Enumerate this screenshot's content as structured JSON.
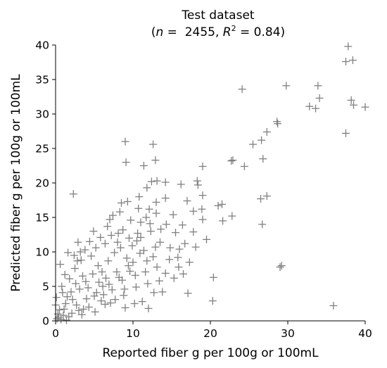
{
  "chart_data": {
    "type": "scatter",
    "title": "Test dataset",
    "subtitle": {
      "prefix": "(",
      "n_symbol": "n",
      "n_text": " =  2455, ",
      "r_symbol": "R",
      "r_sup": "2",
      "r_text": " = 0.84)"
    },
    "xlabel": "Reported fiber g per 100g or 100mL",
    "ylabel": "Predicted fiber g per 100g or 100mL",
    "xlim": [
      0,
      40
    ],
    "ylim": [
      0,
      40
    ],
    "xticks": [
      0,
      10,
      20,
      30,
      40
    ],
    "yticks": [
      0,
      5,
      10,
      15,
      20,
      25,
      30,
      35,
      40
    ],
    "marker": "+",
    "marker_color": "#808080",
    "grid": false,
    "n_points": 2455,
    "r_squared": 0.84,
    "series": [
      {
        "values": [
          [
            37.8,
            39.8
          ],
          [
            37.5,
            37.6
          ],
          [
            38.4,
            37.8
          ],
          [
            33.9,
            34.1
          ],
          [
            34.1,
            32.3
          ],
          [
            32.8,
            31.1
          ],
          [
            33.6,
            30.8
          ],
          [
            38.2,
            32.0
          ],
          [
            38.5,
            31.3
          ],
          [
            40.0,
            31.0
          ],
          [
            37.5,
            27.2
          ],
          [
            29.8,
            34.1
          ],
          [
            24.1,
            33.6
          ],
          [
            28.6,
            28.9
          ],
          [
            28.7,
            28.6
          ],
          [
            27.3,
            27.4
          ],
          [
            26.6,
            26.2
          ],
          [
            25.5,
            25.6
          ],
          [
            26.8,
            23.5
          ],
          [
            24.4,
            22.4
          ],
          [
            22.7,
            23.2
          ],
          [
            22.9,
            23.3
          ],
          [
            21.0,
            16.7
          ],
          [
            21.5,
            16.9
          ],
          [
            22.8,
            15.2
          ],
          [
            26.5,
            17.7
          ],
          [
            27.3,
            18.1
          ],
          [
            26.7,
            14.0
          ],
          [
            29.0,
            7.8
          ],
          [
            29.2,
            8.0
          ],
          [
            35.9,
            2.2
          ],
          [
            20.3,
            2.9
          ],
          [
            20.4,
            6.3
          ],
          [
            17.1,
            4.0
          ],
          [
            9.0,
            26.0
          ],
          [
            9.1,
            23.0
          ],
          [
            11.4,
            22.5
          ],
          [
            12.6,
            25.6
          ],
          [
            12.9,
            23.3
          ],
          [
            2.3,
            18.4
          ],
          [
            8.5,
            17.1
          ],
          [
            9.3,
            17.3
          ],
          [
            11.8,
            19.3
          ],
          [
            12.4,
            20.2
          ],
          [
            13.1,
            20.3
          ],
          [
            14.2,
            20.1
          ],
          [
            16.2,
            19.8
          ],
          [
            19.0,
            22.4
          ],
          [
            18.3,
            20.3
          ],
          [
            18.4,
            19.7
          ],
          [
            19.0,
            18.2
          ],
          [
            15.2,
            15.4
          ],
          [
            14.3,
            14.0
          ],
          [
            16.4,
            13.9
          ],
          [
            13.0,
            17.2
          ],
          [
            10.8,
            18.0
          ],
          [
            11.7,
            15.0
          ],
          [
            12.1,
            16.2
          ],
          [
            14.2,
            17.8
          ],
          [
            7.4,
            15.3
          ],
          [
            8.3,
            15.8
          ],
          [
            11.0,
            14.3
          ],
          [
            13.5,
            11.4
          ],
          [
            15.5,
            12.8
          ],
          [
            17.8,
            12.9
          ],
          [
            19.0,
            14.7
          ],
          [
            21.6,
            14.5
          ],
          [
            17.3,
            8.5
          ],
          [
            16.0,
            10.4
          ],
          [
            15.3,
            6.2
          ],
          [
            14.2,
            6.9
          ],
          [
            13.8,
            4.2
          ],
          [
            12.7,
            4.1
          ],
          [
            11.9,
            5.4
          ],
          [
            11.2,
            2.8
          ],
          [
            12.0,
            1.8
          ],
          [
            10.2,
            2.5
          ],
          [
            9.0,
            1.9
          ],
          [
            8.8,
            3.7
          ],
          [
            6.4,
            2.4
          ],
          [
            4.3,
            2.0
          ],
          [
            3.0,
            1.5
          ],
          [
            2.1,
            1.1
          ],
          [
            1.0,
            0.8
          ],
          [
            0.4,
            0.5
          ],
          [
            1.5,
            3.5
          ],
          [
            0.8,
            5.0
          ],
          [
            1.2,
            6.7
          ],
          [
            0.6,
            8.2
          ],
          [
            1.6,
            9.9
          ],
          [
            2.8,
            8.7
          ],
          [
            3.8,
            10.3
          ],
          [
            5.2,
            10.6
          ],
          [
            6.4,
            11.2
          ],
          [
            7.2,
            12.4
          ],
          [
            8.0,
            11.4
          ],
          [
            9.5,
            12.0
          ],
          [
            10.6,
            12.7
          ],
          [
            11.4,
            10.2
          ],
          [
            12.6,
            9.3
          ],
          [
            13.1,
            7.8
          ],
          [
            10.3,
            6.6
          ],
          [
            9.6,
            7.2
          ],
          [
            8.6,
            5.9
          ],
          [
            7.3,
            4.5
          ],
          [
            6.1,
            5.0
          ],
          [
            5.0,
            3.6
          ],
          [
            4.2,
            4.8
          ],
          [
            3.5,
            6.5
          ],
          [
            2.6,
            5.4
          ],
          [
            2.0,
            4.2
          ],
          [
            1.3,
            2.5
          ],
          [
            0.5,
            1.6
          ],
          [
            0.2,
            0.3
          ],
          [
            0.0,
            2.3
          ],
          [
            0.9,
            4.1
          ],
          [
            1.8,
            6.1
          ],
          [
            2.5,
            7.6
          ],
          [
            3.3,
            8.8
          ],
          [
            4.6,
            9.4
          ],
          [
            5.5,
            8.0
          ],
          [
            6.0,
            7.1
          ],
          [
            6.8,
            8.7
          ],
          [
            7.6,
            9.9
          ],
          [
            8.4,
            10.6
          ],
          [
            9.2,
            9.1
          ],
          [
            10.0,
            8.5
          ],
          [
            7.9,
            7.1
          ],
          [
            6.5,
            6.2
          ],
          [
            5.6,
            5.6
          ],
          [
            4.8,
            6.8
          ],
          [
            3.9,
            5.7
          ],
          [
            3.1,
            4.6
          ],
          [
            2.2,
            3.1
          ],
          [
            1.1,
            1.7
          ],
          [
            0.3,
            1.0
          ],
          [
            4.0,
            3.2
          ],
          [
            5.3,
            4.1
          ],
          [
            6.9,
            5.3
          ],
          [
            8.2,
            6.3
          ],
          [
            9.4,
            8.0
          ],
          [
            10.9,
            9.8
          ],
          [
            11.8,
            8.7
          ],
          [
            3.6,
            1.7
          ],
          [
            2.7,
            2.3
          ],
          [
            1.7,
            0.6
          ],
          [
            0.7,
            0.2
          ],
          [
            5.9,
            2.9
          ],
          [
            7.7,
            3.1
          ],
          [
            8.9,
            4.6
          ],
          [
            10.4,
            4.9
          ],
          [
            9.9,
            10.9
          ],
          [
            8.7,
            13.2
          ],
          [
            6.7,
            13.7
          ],
          [
            5.8,
            12.1
          ],
          [
            4.4,
            11.5
          ],
          [
            3.2,
            10.0
          ],
          [
            2.4,
            9.5
          ],
          [
            14.8,
            10.6
          ],
          [
            13.6,
            13.3
          ],
          [
            16.7,
            11.2
          ],
          [
            15.8,
            9.2
          ],
          [
            16.5,
            6.8
          ],
          [
            18.1,
            10.7
          ],
          [
            19.5,
            11.8
          ],
          [
            17.8,
            15.9
          ],
          [
            17.0,
            17.4
          ],
          [
            18.9,
            16.2
          ],
          [
            12.2,
            14.1
          ],
          [
            13.0,
            15.6
          ],
          [
            9.7,
            14.6
          ],
          [
            10.7,
            16.3
          ],
          [
            7.0,
            14.7
          ],
          [
            6.2,
            3.8
          ],
          [
            7.1,
            2.6
          ],
          [
            5.1,
            1.3
          ],
          [
            3.4,
            0.9
          ],
          [
            1.4,
            0.1
          ],
          [
            0.1,
            3.4
          ],
          [
            2.9,
            11.4
          ],
          [
            4.9,
            13.0
          ],
          [
            8.1,
            12.7
          ],
          [
            11.0,
            12.1
          ],
          [
            12.3,
            13.0
          ],
          [
            14.7,
            8.9
          ],
          [
            15.9,
            7.8
          ],
          [
            13.4,
            5.8
          ],
          [
            11.6,
            7.1
          ],
          [
            12.9,
            10.7
          ],
          [
            10.5,
            11.6
          ]
        ]
      }
    ]
  }
}
